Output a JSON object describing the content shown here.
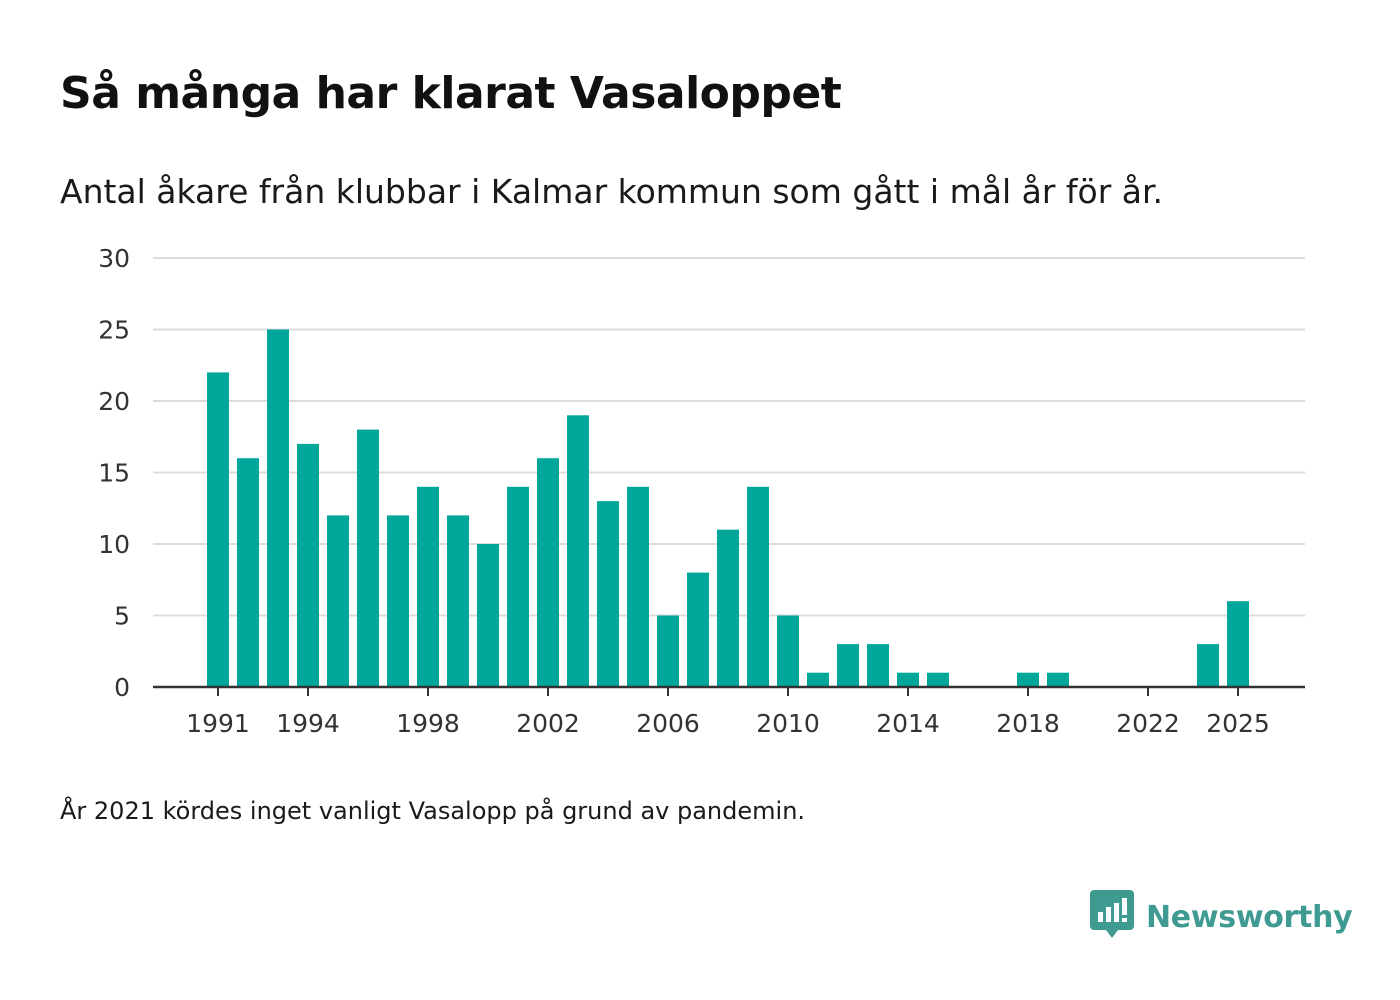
{
  "header": {
    "title": "Så många har klarat Vasaloppet",
    "subtitle": "Antal åkare från klubbar i Kalmar kommun som gått i mål år för år."
  },
  "footnote": "År 2021 kördes inget vanligt Vasalopp på grund av pandemin.",
  "brand": {
    "name": "Newsworthy",
    "icon": "newsworthy-logo-icon"
  },
  "colors": {
    "bar": "#00a69a",
    "grid": "#dcdcdc",
    "axis": "#333333",
    "brand": "#3f9b92"
  },
  "chart_data": {
    "type": "bar",
    "title": "Så många har klarat Vasaloppet",
    "xlabel": "",
    "ylabel": "",
    "ylim": [
      0,
      30
    ],
    "yticks": [
      0,
      5,
      10,
      15,
      20,
      25,
      30
    ],
    "xticks": [
      1991,
      1994,
      1998,
      2002,
      2006,
      2010,
      2014,
      2018,
      2022,
      2025
    ],
    "grid": true,
    "categories": [
      1991,
      1992,
      1993,
      1994,
      1995,
      1996,
      1997,
      1998,
      1999,
      2000,
      2001,
      2002,
      2003,
      2004,
      2005,
      2006,
      2007,
      2008,
      2009,
      2010,
      2011,
      2012,
      2013,
      2014,
      2015,
      2016,
      2017,
      2018,
      2019,
      2020,
      2021,
      2022,
      2023,
      2024,
      2025
    ],
    "values": [
      22,
      16,
      25,
      17,
      12,
      18,
      12,
      14,
      12,
      10,
      14,
      16,
      19,
      13,
      14,
      5,
      8,
      11,
      14,
      5,
      1,
      3,
      3,
      1,
      1,
      0,
      0,
      1,
      1,
      0,
      0,
      0,
      0,
      3,
      6
    ]
  }
}
